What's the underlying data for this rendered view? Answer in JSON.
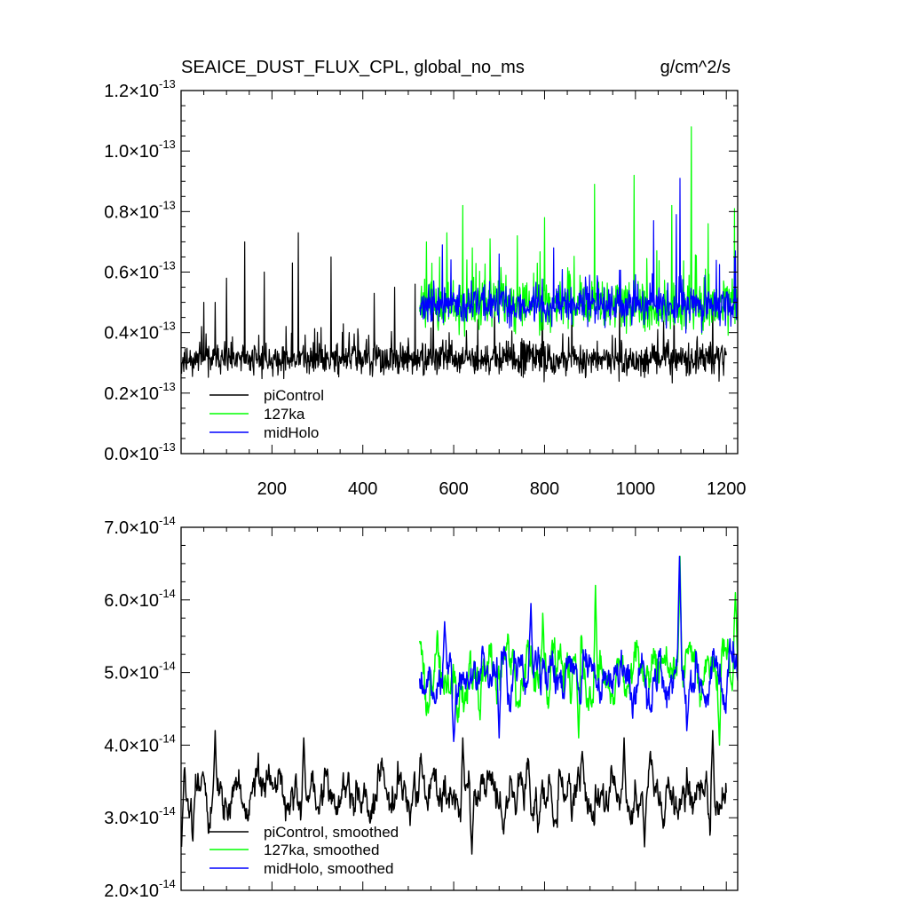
{
  "chart_data": [
    {
      "type": "line",
      "title": "SEAICE_DUST_FLUX_CPL, global_no_ms",
      "units": "g/cm^2/s",
      "xlim": [
        0,
        1225
      ],
      "ylim": [
        0.0,
        1.2e-13
      ],
      "x_ticks": [
        200,
        400,
        600,
        800,
        1000,
        1200
      ],
      "x_tick_labels": [
        "200",
        "400",
        "600",
        "800",
        "1000",
        "1200"
      ],
      "y_ticks": [
        0.0,
        2e-14,
        4e-14,
        6e-14,
        8e-14,
        1e-13,
        1.2e-13
      ],
      "y_tick_labels": [
        {
          "mant": "0.0",
          "exp": "-13"
        },
        {
          "mant": "0.2",
          "exp": "-13"
        },
        {
          "mant": "0.4",
          "exp": "-13"
        },
        {
          "mant": "0.6",
          "exp": "-13"
        },
        {
          "mant": "0.8",
          "exp": "-13"
        },
        {
          "mant": "1.0",
          "exp": "-13"
        },
        {
          "mant": "1.2",
          "exp": "-13"
        }
      ],
      "times": "×10",
      "legend_position": "bottom-left",
      "series": [
        {
          "name": "piControl",
          "color": "#000000",
          "x_start": 1,
          "x_end": 1200,
          "mean": 3.1e-14,
          "noise": 5e-15,
          "spikes": [
            [
              50,
              5e-14
            ],
            [
              75,
              5e-14
            ],
            [
              100,
              5.8e-14
            ],
            [
              140,
              7e-14
            ],
            [
              183,
              6e-14
            ],
            [
              245,
              6.3e-14
            ],
            [
              258,
              7.3e-14
            ],
            [
              330,
              6.5e-14
            ],
            [
              425,
              5.3e-14
            ],
            [
              470,
              5.5e-14
            ],
            [
              515,
              5.6e-14
            ],
            [
              555,
              5e-14
            ],
            [
              690,
              5e-14
            ],
            [
              795,
              5.5e-14
            ],
            [
              860,
              5.1e-14
            ],
            [
              965,
              5.3e-14
            ],
            [
              1085,
              5.2e-14
            ],
            [
              1170,
              5.2e-14
            ]
          ],
          "seed": 11
        },
        {
          "name": "127ka",
          "color": "#00ff00",
          "x_start": 525,
          "x_end": 1225,
          "mean": 4.9e-14,
          "noise": 8e-15,
          "spikes": [
            [
              540,
              7e-14
            ],
            [
              585,
              7.3e-14
            ],
            [
              620,
              8.2e-14
            ],
            [
              680,
              7.1e-14
            ],
            [
              740,
              7.2e-14
            ],
            [
              800,
              7.8e-14
            ],
            [
              910,
              8.9e-14
            ],
            [
              997,
              9.2e-14
            ],
            [
              1080,
              8.2e-14
            ],
            [
              1123,
              1.08e-13
            ],
            [
              1160,
              7.6e-14
            ],
            [
              1218,
              8.1e-14
            ]
          ],
          "seed": 23
        },
        {
          "name": "midHolo",
          "color": "#0000ff",
          "x_start": 525,
          "x_end": 1225,
          "mean": 4.9e-14,
          "noise": 6e-15,
          "spikes": [
            [
              575,
              6.9e-14
            ],
            [
              700,
              6.6e-14
            ],
            [
              820,
              6.8e-14
            ],
            [
              1040,
              7.7e-14
            ],
            [
              1090,
              7.9e-14
            ],
            [
              1098,
              9.1e-14
            ],
            [
              1220,
              6.7e-14
            ]
          ],
          "seed": 37
        }
      ]
    },
    {
      "type": "line",
      "title": "",
      "xlim": [
        0,
        1225
      ],
      "ylim": [
        2e-14,
        7e-14
      ],
      "y_ticks": [
        2e-14,
        3e-14,
        4e-14,
        5e-14,
        6e-14,
        7e-14
      ],
      "y_tick_labels": [
        {
          "mant": "2.0",
          "exp": "-14"
        },
        {
          "mant": "3.0",
          "exp": "-14"
        },
        {
          "mant": "4.0",
          "exp": "-14"
        },
        {
          "mant": "5.0",
          "exp": "-14"
        },
        {
          "mant": "6.0",
          "exp": "-14"
        },
        {
          "mant": "7.0",
          "exp": "-14"
        }
      ],
      "times": "×10",
      "legend_position": "bottom-left",
      "series": [
        {
          "name": "piControl, smoothed",
          "color": "#000000",
          "x_start": 1,
          "x_end": 1200,
          "mean": 3.3e-14,
          "amp": 3.5e-15,
          "peaks": [
            [
              75,
              4.2e-14
            ],
            [
              270,
              4.1e-14
            ],
            [
              620,
              4.1e-14
            ],
            [
              975,
              4.1e-14
            ],
            [
              1170,
              4.2e-14
            ]
          ],
          "troughs": [
            [
              1,
              2.6e-14
            ],
            [
              640,
              2.5e-14
            ],
            [
              1020,
              2.6e-14
            ]
          ],
          "seed": 51
        },
        {
          "name": "127ka, smoothed",
          "color": "#00ff00",
          "x_start": 525,
          "x_end": 1225,
          "mean": 5.05e-14,
          "amp": 4.2e-15,
          "peaks": [
            [
              912,
              6.2e-14
            ],
            [
              1098,
              6.6e-14
            ],
            [
              1220,
              6.1e-14
            ]
          ],
          "troughs": [
            [
              875,
              4.1e-14
            ],
            [
              1185,
              4e-14
            ]
          ],
          "seed": 63
        },
        {
          "name": "midHolo, smoothed",
          "color": "#0000ff",
          "x_start": 525,
          "x_end": 1225,
          "mean": 4.95e-14,
          "amp": 3.8e-15,
          "peaks": [
            [
              580,
              5.7e-14
            ],
            [
              770,
              5.95e-14
            ],
            [
              1097,
              6.6e-14
            ]
          ],
          "troughs": [
            [
              600,
              4.05e-14
            ],
            [
              700,
              4.1e-14
            ]
          ],
          "seed": 79
        }
      ]
    }
  ]
}
